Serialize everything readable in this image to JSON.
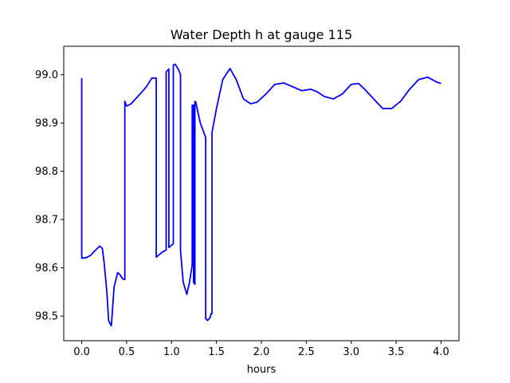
{
  "chart_data": {
    "type": "line",
    "title": "Water Depth h at gauge 115",
    "xlabel": "hours",
    "ylabel": "",
    "xlim": [
      -0.2,
      4.2
    ],
    "ylim": [
      98.449,
      99.059
    ],
    "xticks": [
      0.0,
      0.5,
      1.0,
      1.5,
      2.0,
      2.5,
      3.0,
      3.5,
      4.0
    ],
    "xtick_labels": [
      "0.0",
      "0.5",
      "1.0",
      "1.5",
      "2.0",
      "2.5",
      "3.0",
      "3.5",
      "4.0"
    ],
    "yticks": [
      98.5,
      98.6,
      98.7,
      98.8,
      98.9,
      99.0
    ],
    "ytick_labels": [
      "98.5",
      "98.6",
      "98.7",
      "98.8",
      "98.9",
      "99.0"
    ],
    "grid": false,
    "series": [
      {
        "color": "#0000ff",
        "x": [
          0.0,
          0.0,
          0.05,
          0.1,
          0.15,
          0.2,
          0.23,
          0.25,
          0.28,
          0.3,
          0.33,
          0.36,
          0.4,
          0.43,
          0.45,
          0.47,
          0.48,
          0.48,
          0.5,
          0.55,
          0.65,
          0.72,
          0.78,
          0.83,
          0.83,
          0.9,
          0.94,
          0.94,
          0.97,
          0.97,
          1.02,
          1.02,
          1.04,
          1.08,
          1.1,
          1.1,
          1.13,
          1.17,
          1.2,
          1.23,
          1.23,
          1.245,
          1.245,
          1.26,
          1.26,
          1.27,
          1.32,
          1.38,
          1.38,
          1.4,
          1.43,
          1.44,
          1.45,
          1.45,
          1.5,
          1.57,
          1.65,
          1.72,
          1.8,
          1.88,
          1.95,
          2.05,
          2.15,
          2.25,
          2.35,
          2.45,
          2.55,
          2.62,
          2.7,
          2.8,
          2.9,
          3.0,
          3.08,
          3.15,
          3.25,
          3.35,
          3.45,
          3.55,
          3.65,
          3.75,
          3.85,
          3.95,
          4.0
        ],
        "y": [
          98.993,
          98.62,
          98.621,
          98.626,
          98.636,
          98.645,
          98.64,
          98.61,
          98.55,
          98.49,
          98.48,
          98.56,
          98.59,
          98.585,
          98.578,
          98.576,
          98.576,
          98.945,
          98.935,
          98.94,
          98.96,
          98.975,
          98.993,
          98.993,
          98.622,
          98.633,
          98.637,
          99.006,
          99.012,
          98.642,
          98.65,
          99.02,
          99.022,
          99.01,
          99.0,
          98.635,
          98.57,
          98.545,
          98.57,
          98.606,
          98.937,
          98.937,
          98.57,
          98.566,
          98.945,
          98.943,
          98.9,
          98.87,
          98.495,
          98.491,
          98.497,
          98.505,
          98.505,
          98.88,
          98.93,
          98.99,
          99.013,
          98.99,
          98.95,
          98.94,
          98.943,
          98.96,
          98.98,
          98.983,
          98.975,
          98.967,
          98.97,
          98.965,
          98.955,
          98.95,
          98.96,
          98.98,
          98.982,
          98.97,
          98.95,
          98.93,
          98.93,
          98.945,
          98.97,
          98.99,
          98.995,
          98.985,
          98.982
        ]
      }
    ]
  }
}
